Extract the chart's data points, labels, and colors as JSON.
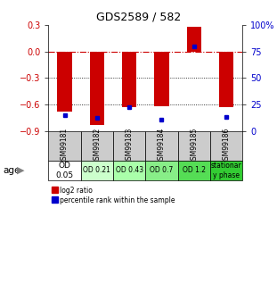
{
  "title": "GDS2589 / 582",
  "samples": [
    "GSM99181",
    "GSM99182",
    "GSM99183",
    "GSM99184",
    "GSM99185",
    "GSM99186"
  ],
  "log2_top": [
    0.0,
    0.0,
    0.0,
    0.0,
    0.28,
    0.0
  ],
  "log2_bottom": [
    -0.68,
    -0.83,
    -0.63,
    -0.62,
    0.0,
    -0.63
  ],
  "percentile_rank": [
    15,
    13,
    23,
    11,
    80,
    14
  ],
  "ylim_left": [
    -0.9,
    0.3
  ],
  "ylim_right": [
    0,
    100
  ],
  "yticks_left": [
    0.3,
    0.0,
    -0.3,
    -0.6,
    -0.9
  ],
  "yticks_right": [
    100,
    75,
    50,
    25,
    0
  ],
  "age_labels": [
    "OD\n0.05",
    "OD 0.21",
    "OD 0.43",
    "OD 0.7",
    "OD 1.2",
    "stationar\ny phase"
  ],
  "age_colors": [
    "#ffffff",
    "#ccffcc",
    "#aaffaa",
    "#88ee88",
    "#55dd55",
    "#33cc33"
  ],
  "bar_color": "#cc0000",
  "percentile_color": "#0000cc",
  "zero_line_color": "#cc0000",
  "sample_bg_color": "#cccccc",
  "bar_width": 0.45
}
